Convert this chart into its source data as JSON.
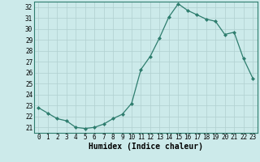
{
  "x": [
    0,
    1,
    2,
    3,
    4,
    5,
    6,
    7,
    8,
    9,
    10,
    11,
    12,
    13,
    14,
    15,
    16,
    17,
    18,
    19,
    20,
    21,
    22,
    23
  ],
  "y": [
    22.8,
    22.3,
    21.8,
    21.6,
    21.0,
    20.9,
    21.0,
    21.3,
    21.8,
    22.2,
    23.2,
    26.3,
    27.5,
    29.2,
    31.1,
    32.3,
    31.7,
    31.3,
    30.9,
    30.7,
    29.5,
    29.7,
    27.3,
    25.5
  ],
  "xlim": [
    -0.5,
    23.5
  ],
  "ylim": [
    20.5,
    32.5
  ],
  "yticks": [
    21,
    22,
    23,
    24,
    25,
    26,
    27,
    28,
    29,
    30,
    31,
    32
  ],
  "xticks": [
    0,
    1,
    2,
    3,
    4,
    5,
    6,
    7,
    8,
    9,
    10,
    11,
    12,
    13,
    14,
    15,
    16,
    17,
    18,
    19,
    20,
    21,
    22,
    23
  ],
  "xlabel": "Humidex (Indice chaleur)",
  "line_color": "#2e7d6e",
  "marker": "D",
  "marker_size": 2.0,
  "bg_color": "#cceaea",
  "grid_color": "#b0d0d0",
  "tick_label_fontsize": 5.5,
  "xlabel_fontsize": 7.0,
  "linewidth": 0.9
}
